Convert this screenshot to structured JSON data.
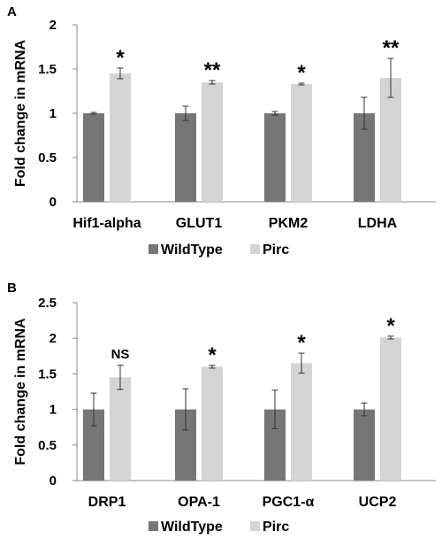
{
  "chart_data": [
    {
      "type": "bar",
      "panel_label": "A",
      "ylabel": "Fold change in mRNA",
      "ylim": [
        0,
        2
      ],
      "yticks": [
        "0",
        "0.5",
        "1",
        "1.5",
        "2"
      ],
      "categories": [
        "Hif1-alpha",
        "GLUT1",
        "PKM2",
        "LDHA"
      ],
      "series": [
        {
          "name": "WildType",
          "color": "#767676",
          "values": [
            1.0,
            1.0,
            1.0,
            1.0
          ],
          "errors": [
            0.01,
            0.08,
            0.02,
            0.18
          ]
        },
        {
          "name": "Pirc",
          "color": "#d4d4d4",
          "values": [
            1.45,
            1.35,
            1.33,
            1.4
          ],
          "errors": [
            0.06,
            0.02,
            0.01,
            0.22
          ]
        }
      ],
      "significance": [
        "*",
        "**",
        "*",
        "**"
      ],
      "grid": false,
      "legend": "bottom"
    },
    {
      "type": "bar",
      "panel_label": "B",
      "ylabel": "Fold change in mRNA",
      "ylim": [
        0,
        2.5
      ],
      "yticks": [
        "0",
        "0.5",
        "1",
        "1.5",
        "2",
        "2.5"
      ],
      "categories": [
        "DRP1",
        "OPA-1",
        "PGC1-α",
        "UCP2"
      ],
      "series": [
        {
          "name": "WildType",
          "color": "#767676",
          "values": [
            1.0,
            1.0,
            1.0,
            1.0
          ],
          "errors": [
            0.23,
            0.29,
            0.27,
            0.09
          ]
        },
        {
          "name": "Pirc",
          "color": "#d4d4d4",
          "values": [
            1.45,
            1.6,
            1.65,
            2.01
          ],
          "errors": [
            0.17,
            0.02,
            0.14,
            0.02
          ]
        }
      ],
      "significance": [
        "NS",
        "*",
        "*",
        "*"
      ],
      "grid": false,
      "legend": "bottom"
    }
  ]
}
